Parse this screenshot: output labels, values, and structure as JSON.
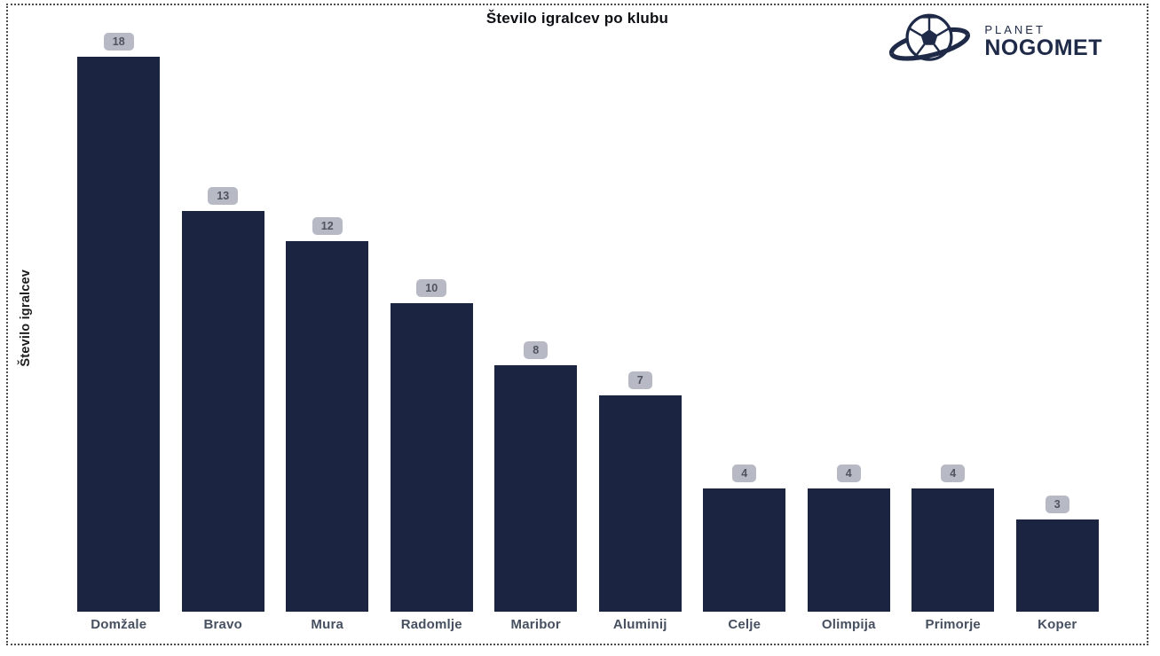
{
  "title": "Število igralcev po klubu",
  "logo": {
    "line1": "PLANET",
    "line2": "NOGOMET",
    "color": "#1e2a47"
  },
  "chart_data": {
    "type": "bar",
    "categories": [
      "Domžale",
      "Bravo",
      "Mura",
      "Radomlje",
      "Maribor",
      "Aluminij",
      "Celje",
      "Olimpija",
      "Primorje",
      "Koper"
    ],
    "values": [
      18,
      13,
      12,
      10,
      8,
      7,
      4,
      4,
      4,
      3
    ],
    "title": "Število igralcev po klubu",
    "xlabel": "",
    "ylabel": "Število igralcev",
    "ylim": [
      0,
      19
    ],
    "grid": false,
    "legend": false,
    "data_labels": [
      "18",
      "13",
      "12",
      "10",
      "8",
      "7",
      "4",
      "4",
      "4",
      "3"
    ],
    "bar_color": "#1b2440",
    "badge_bg": "#b7b9c5",
    "badge_text": "#4f545e",
    "axis_label_color": "#475060"
  }
}
